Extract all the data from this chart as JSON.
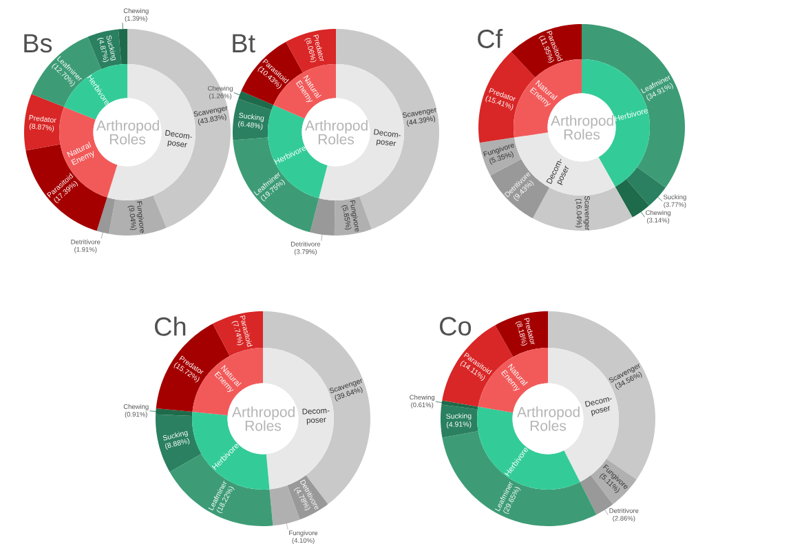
{
  "chart_data": [
    {
      "type": "donut",
      "title": "Bs",
      "categories": [
        "Scavenger",
        "Fungivore",
        "Detritivore",
        "Parasitoid",
        "Predator",
        "Leafminer",
        "Sucking",
        "Chewing"
      ],
      "values": [
        43.83,
        9.04,
        1.91,
        17.39,
        8.87,
        12.7,
        4.87,
        1.39
      ],
      "value_labels": [
        "(43.83%)",
        "(9.04%)",
        "(1.91%)",
        "(17.39%)",
        "(8.87%)",
        "(12.70%)",
        "(4.87%)",
        "(1.39%)"
      ],
      "colors": [
        "#c9c9c9",
        "#b0b0b0",
        "#999999",
        "#a50000",
        "#d92626",
        "#3d9c76",
        "#2a8060",
        "#1e6b4b"
      ]
    },
    {
      "type": "donut",
      "annotations": [
        "Arthropod Roles"
      ],
      "categories": [
        "Decom- poser",
        "Natural Enemy",
        "Herbivore"
      ],
      "values": [
        54.78,
        26.26,
        18.96
      ],
      "colors": [
        "#e8e8e8",
        "#f25a5a",
        "#33cc99"
      ]
    },
    {
      "type": "donut",
      "title": "Bt",
      "categories": [
        "Scavenger",
        "Fungivore",
        "Detritivore",
        "Leafminer",
        "Sucking",
        "Chewing",
        "Parasitoid",
        "Predator"
      ],
      "values": [
        44.39,
        5.85,
        3.79,
        19.75,
        6.48,
        1.26,
        10.43,
        8.06
      ],
      "value_labels": [
        "(44.39%)",
        "(5.85%)",
        "(3.79%)",
        "(19.75%)",
        "(6.48%)",
        "(1.26%)",
        "(10.43%)",
        "(8.06%)"
      ],
      "colors": [
        "#c9c9c9",
        "#b0b0b0",
        "#999999",
        "#3d9c76",
        "#2a8060",
        "#1e6b4b",
        "#a50000",
        "#d92626"
      ]
    },
    {
      "type": "donut",
      "annotations": [
        "Arthropod Roles"
      ],
      "categories": [
        "Decom- poser",
        "Herbivore",
        "Natural Enemy"
      ],
      "values": [
        54.03,
        27.49,
        18.49
      ],
      "colors": [
        "#e8e8e8",
        "#33cc99",
        "#f25a5a"
      ]
    },
    {
      "type": "donut",
      "title": "Cf",
      "categories": [
        "Leafminer",
        "Sucking",
        "Chewing",
        "Scavenger",
        "Detritivore",
        "Fungivore",
        "Predator",
        "Parasitoid"
      ],
      "values": [
        34.91,
        3.77,
        3.14,
        16.04,
        9.43,
        5.35,
        15.41,
        11.95
      ],
      "value_labels": [
        "(34.91%)",
        "(3.77%)",
        "(3.14%)",
        "(16.04%)",
        "(9.43%)",
        "(5.35%)",
        "(15.41%)",
        "(11.95%)"
      ],
      "colors": [
        "#3d9c76",
        "#2a8060",
        "#1e6b4b",
        "#c9c9c9",
        "#999999",
        "#b0b0b0",
        "#d92626",
        "#a50000"
      ]
    },
    {
      "type": "donut",
      "annotations": [
        "Arthropod Roles"
      ],
      "categories": [
        "Herbivore",
        "Decom- poser",
        "Natural Enemy"
      ],
      "values": [
        41.82,
        30.82,
        27.36
      ],
      "colors": [
        "#33cc99",
        "#e8e8e8",
        "#f25a5a"
      ]
    },
    {
      "type": "donut",
      "title": "Ch",
      "categories": [
        "Scavenger",
        "Detritivore",
        "Fungivore",
        "Leafminer",
        "Sucking",
        "Chewing",
        "Predator",
        "Parasitoid"
      ],
      "values": [
        39.64,
        4.78,
        4.1,
        18.22,
        8.88,
        0.91,
        15.72,
        7.74
      ],
      "value_labels": [
        "(39.64%)",
        "(4.78%)",
        "(4.10%)",
        "(18.22%)",
        "(8.88%)",
        "(0.91%)",
        "(15.72%)",
        "(7.74%)"
      ],
      "colors": [
        "#c9c9c9",
        "#999999",
        "#b0b0b0",
        "#3d9c76",
        "#2a8060",
        "#1e6b4b",
        "#a50000",
        "#d92626"
      ]
    },
    {
      "type": "donut",
      "annotations": [
        "Arthropod Roles"
      ],
      "categories": [
        "Decom- poser",
        "Herbivore",
        "Natural Enemy"
      ],
      "values": [
        48.52,
        28.01,
        23.46
      ],
      "colors": [
        "#e8e8e8",
        "#33cc99",
        "#f25a5a"
      ]
    },
    {
      "type": "donut",
      "title": "Co",
      "categories": [
        "Scavenger",
        "Fungivore",
        "Detritivore",
        "Leafminer",
        "Sucking",
        "Chewing",
        "Parasitoid",
        "Predator"
      ],
      "values": [
        34.56,
        5.11,
        2.86,
        29.65,
        4.91,
        0.61,
        14.11,
        8.18
      ],
      "value_labels": [
        "(34.56%)",
        "(5.11%)",
        "(2.86%)",
        "(29.65%)",
        "(4.91%)",
        "(0.61%)",
        "(14.11%)",
        "(8.18%)"
      ],
      "colors": [
        "#c9c9c9",
        "#b0b0b0",
        "#999999",
        "#3d9c76",
        "#2a8060",
        "#1e6b4b",
        "#d92626",
        "#a50000"
      ]
    },
    {
      "type": "donut",
      "annotations": [
        "Arthropod Roles"
      ],
      "categories": [
        "Decom- poser",
        "Herbivore",
        "Natural Enemy"
      ],
      "values": [
        42.53,
        35.17,
        22.29
      ],
      "colors": [
        "#e8e8e8",
        "#33cc99",
        "#f25a5a"
      ]
    }
  ]
}
